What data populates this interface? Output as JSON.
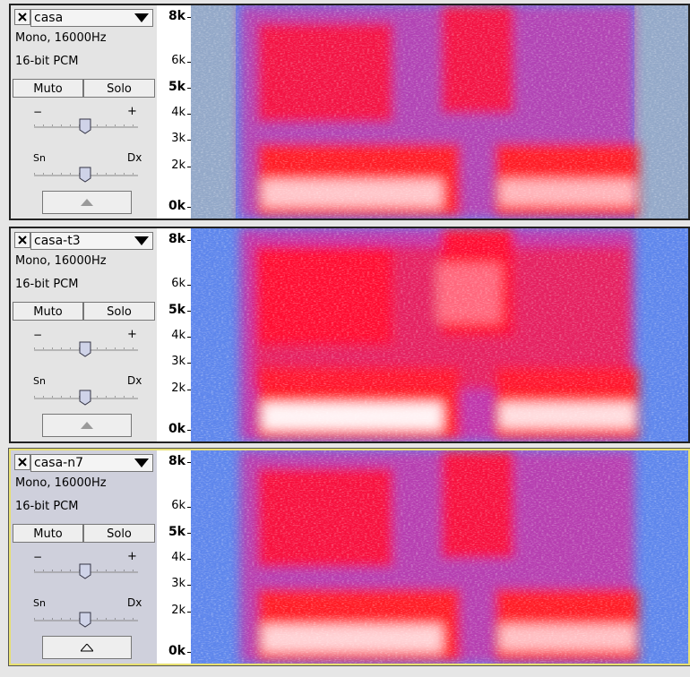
{
  "tracks": [
    {
      "name": "casa",
      "format": "Mono, 16000Hz",
      "sample": "16-bit PCM",
      "mute": "Muto",
      "solo": "Solo",
      "gain_min": "−",
      "gain_max": "+",
      "pan_left": "Sn",
      "pan_right": "Dx",
      "axis_labels": [
        "8k",
        "6k",
        "5k",
        "4k",
        "3k",
        "2k",
        "0k"
      ],
      "selected": false
    },
    {
      "name": "casa-t3",
      "format": "Mono, 16000Hz",
      "sample": "16-bit PCM",
      "mute": "Muto",
      "solo": "Solo",
      "gain_min": "−",
      "gain_max": "+",
      "pan_left": "Sn",
      "pan_right": "Dx",
      "axis_labels": [
        "8k",
        "6k",
        "5k",
        "4k",
        "3k",
        "2k",
        "0k"
      ],
      "selected": false
    },
    {
      "name": "casa-n7",
      "format": "Mono, 16000Hz",
      "sample": "16-bit PCM",
      "mute": "Muto",
      "solo": "Solo",
      "gain_min": "−",
      "gain_max": "+",
      "pan_left": "Sn",
      "pan_right": "Dx",
      "axis_labels": [
        "8k",
        "6k",
        "5k",
        "4k",
        "3k",
        "2k",
        "0k"
      ],
      "selected": true
    }
  ]
}
